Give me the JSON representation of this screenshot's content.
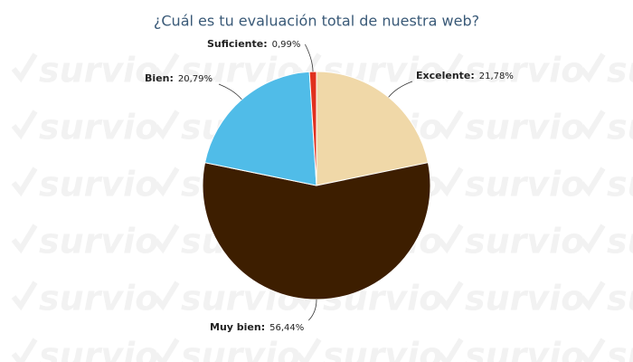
{
  "chart_data": {
    "type": "pie",
    "title": "¿Cuál es tu evaluación total de nuestra web?",
    "watermark": "survio",
    "categories": [
      "Excelente:",
      "Muy bien:",
      "Bien:",
      "Suficiente:"
    ],
    "values": [
      21.78,
      56.44,
      20.79,
      0.99
    ],
    "value_labels": [
      "21,78%",
      "56,44%",
      "20,79%",
      "0,99%"
    ],
    "colors": [
      "#f0d8a8",
      "#3d1e00",
      "#50bce8",
      "#e0301e"
    ]
  }
}
